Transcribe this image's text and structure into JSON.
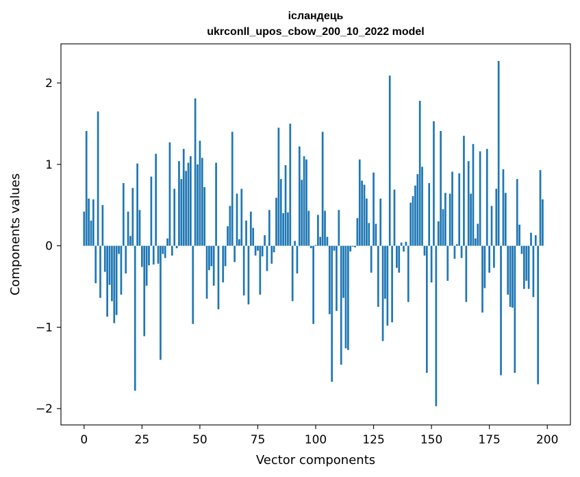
{
  "chart_data": {
    "type": "bar",
    "title": "ісландець",
    "subtitle": "ukrconll_upos_cbow_200_10_2022 model",
    "xlabel": "Vector components",
    "ylabel": "Components values",
    "xlim": [
      -10,
      210
    ],
    "ylim": [
      -2.2,
      2.48
    ],
    "xticks": [
      0,
      25,
      50,
      75,
      100,
      125,
      150,
      175,
      200
    ],
    "yticks": [
      -2,
      -1,
      0,
      1,
      2
    ],
    "ytick_labels": [
      "−2",
      "−1",
      "0",
      "1",
      "2"
    ],
    "bar_color": "#1f77b4",
    "values": [
      0.42,
      1.41,
      0.58,
      0.31,
      0.57,
      -0.46,
      1.65,
      -0.64,
      0.5,
      -0.32,
      -0.87,
      -0.48,
      -0.68,
      -0.95,
      -0.85,
      -0.1,
      -0.6,
      0.77,
      -0.34,
      0.42,
      0.12,
      0.71,
      -1.78,
      1.01,
      0.44,
      -0.26,
      -1.11,
      -0.49,
      -0.24,
      0.85,
      -0.23,
      1.13,
      -0.22,
      -1.4,
      -0.1,
      -0.15,
      0.09,
      1.27,
      -0.12,
      0.7,
      -0.03,
      1.04,
      0.82,
      1.19,
      0.92,
      1.02,
      1.1,
      -0.96,
      1.81,
      1.0,
      1.29,
      1.08,
      0.72,
      -0.65,
      -0.3,
      -0.25,
      -0.49,
      1.02,
      -0.78,
      0.0,
      -0.45,
      -0.25,
      0.24,
      0.49,
      1.4,
      -0.2,
      0.64,
      0.08,
      0.7,
      -0.61,
      0.31,
      -0.72,
      0.42,
      0.22,
      -0.12,
      -0.06,
      -0.6,
      -0.13,
      0.13,
      -0.31,
      0.44,
      -0.22,
      -0.08,
      0.59,
      1.45,
      0.82,
      0.4,
      0.99,
      0.41,
      1.5,
      -0.68,
      0.06,
      -0.34,
      1.22,
      0.81,
      1.1,
      1.06,
      0.43,
      -0.03,
      -0.96,
      0.01,
      0.38,
      0.11,
      1.4,
      0.43,
      0.11,
      -0.84,
      -1.67,
      -0.06,
      -0.8,
      0.44,
      -1.46,
      -0.64,
      -1.26,
      -1.28,
      -0.07,
      -0.01,
      -0.02,
      0.34,
      1.06,
      0.8,
      0.75,
      0.58,
      0.28,
      -0.33,
      0.9,
      0.27,
      -0.75,
      0.58,
      -1.17,
      -0.65,
      -0.98,
      2.09,
      -0.94,
      0.69,
      -0.27,
      -0.33,
      0.04,
      -0.07,
      0.05,
      -0.69,
      0.53,
      0.61,
      0.74,
      0.88,
      1.78,
      0.97,
      -0.12,
      -1.56,
      0.77,
      -0.45,
      1.53,
      -1.97,
      0.3,
      1.41,
      0.45,
      0.65,
      -0.43,
      0.64,
      0.91,
      -0.16,
      0.02,
      0.89,
      -0.15,
      1.35,
      -0.69,
      1.04,
      0.64,
      1.25,
      0.09,
      0.27,
      1.16,
      -0.82,
      -0.52,
      1.19,
      -0.33,
      0.49,
      -0.27,
      0.7,
      2.27,
      -1.59,
      0.94,
      0.65,
      -0.6,
      -0.75,
      -0.76,
      -1.56,
      0.82,
      0.26,
      -0.1,
      -0.53,
      -0.43,
      -0.53,
      0.16,
      -0.63,
      0.13,
      -1.7,
      0.93,
      0.57
    ]
  }
}
